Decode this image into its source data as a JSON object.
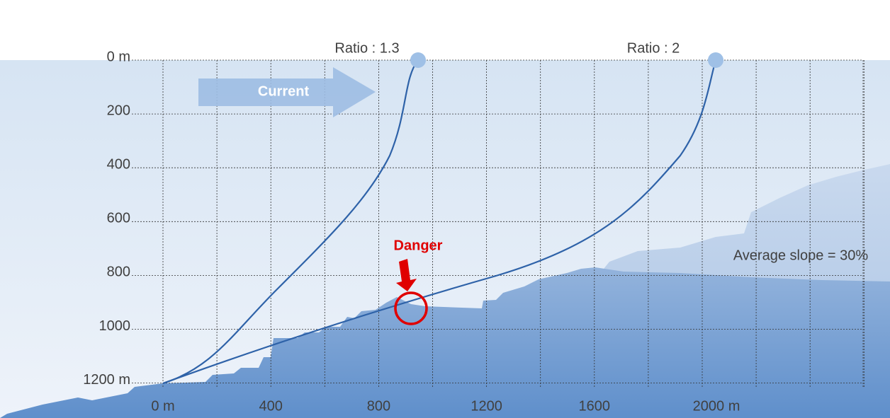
{
  "labels": {
    "ratio_1": "Ratio : 1.3",
    "ratio_2": "Ratio : 2",
    "current": "Current",
    "danger": "Danger",
    "slope": "Average slope = 30%"
  },
  "y_axis": [
    "0 m",
    "200",
    "400",
    "600",
    "800",
    "1000",
    "1200 m"
  ],
  "x_axis": [
    "0 m",
    "400",
    "800",
    "1200",
    "1600",
    "2000 m"
  ]
}
